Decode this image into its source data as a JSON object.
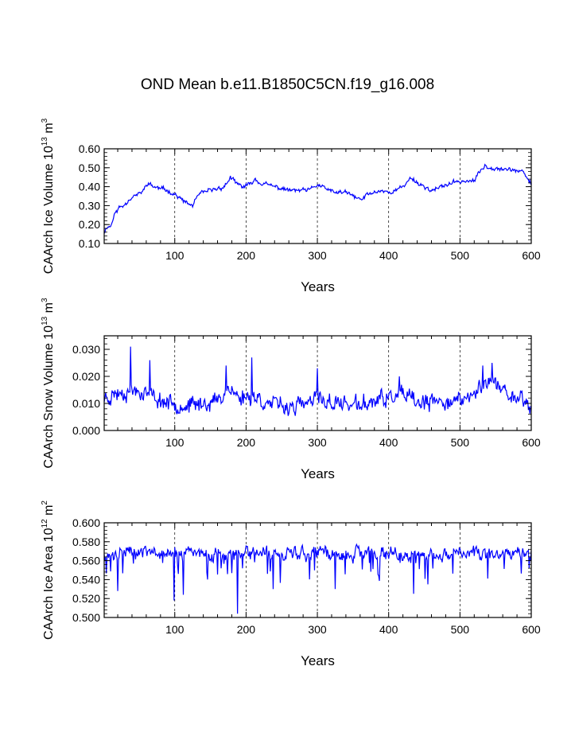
{
  "title": "OND Mean b.e11.B1850C5CN.f19_g16.008",
  "chart_data": [
    {
      "type": "line",
      "name": "ice-volume",
      "ylabel": "CAArch Ice Volume",
      "ylabel_power": "13",
      "ylabel_unit": "m",
      "ylabel_unit_power": "3",
      "xlabel": "Years",
      "xlim": [
        1,
        600
      ],
      "ylim": [
        0.1,
        0.6
      ],
      "xticks": [
        100,
        200,
        300,
        400,
        500,
        600
      ],
      "yticks": [
        "0.10",
        "0.20",
        "0.30",
        "0.40",
        "0.50",
        "0.60"
      ],
      "series_color": "#0000ff",
      "anchors": [
        [
          1,
          0.16
        ],
        [
          5,
          0.19
        ],
        [
          10,
          0.19
        ],
        [
          15,
          0.25
        ],
        [
          22,
          0.29
        ],
        [
          28,
          0.3
        ],
        [
          35,
          0.33
        ],
        [
          42,
          0.35
        ],
        [
          50,
          0.36
        ],
        [
          56,
          0.38
        ],
        [
          62,
          0.42
        ],
        [
          70,
          0.4
        ],
        [
          80,
          0.39
        ],
        [
          90,
          0.38
        ],
        [
          100,
          0.36
        ],
        [
          110,
          0.33
        ],
        [
          118,
          0.31
        ],
        [
          125,
          0.3
        ],
        [
          132,
          0.35
        ],
        [
          140,
          0.37
        ],
        [
          150,
          0.38
        ],
        [
          160,
          0.39
        ],
        [
          170,
          0.4
        ],
        [
          178,
          0.45
        ],
        [
          185,
          0.42
        ],
        [
          195,
          0.4
        ],
        [
          205,
          0.41
        ],
        [
          212,
          0.44
        ],
        [
          220,
          0.42
        ],
        [
          230,
          0.41
        ],
        [
          240,
          0.4
        ],
        [
          250,
          0.39
        ],
        [
          262,
          0.38
        ],
        [
          275,
          0.38
        ],
        [
          288,
          0.38
        ],
        [
          300,
          0.41
        ],
        [
          312,
          0.39
        ],
        [
          322,
          0.37
        ],
        [
          330,
          0.37
        ],
        [
          340,
          0.37
        ],
        [
          350,
          0.35
        ],
        [
          362,
          0.33
        ],
        [
          370,
          0.36
        ],
        [
          380,
          0.37
        ],
        [
          390,
          0.38
        ],
        [
          400,
          0.37
        ],
        [
          410,
          0.38
        ],
        [
          420,
          0.4
        ],
        [
          432,
          0.45
        ],
        [
          440,
          0.42
        ],
        [
          450,
          0.4
        ],
        [
          460,
          0.38
        ],
        [
          470,
          0.39
        ],
        [
          480,
          0.41
        ],
        [
          490,
          0.42
        ],
        [
          500,
          0.43
        ],
        [
          510,
          0.43
        ],
        [
          520,
          0.43
        ],
        [
          528,
          0.48
        ],
        [
          535,
          0.51
        ],
        [
          545,
          0.5
        ],
        [
          555,
          0.5
        ],
        [
          565,
          0.49
        ],
        [
          575,
          0.49
        ],
        [
          585,
          0.48
        ],
        [
          592,
          0.46
        ],
        [
          600,
          0.41
        ]
      ],
      "noise": 0.012,
      "seed": 11
    },
    {
      "type": "line",
      "name": "snow-volume",
      "ylabel": "CAArch Snow Volume",
      "ylabel_power": "13",
      "ylabel_unit": "m",
      "ylabel_unit_power": "3",
      "xlabel": "Years",
      "xlim": [
        1,
        600
      ],
      "ylim": [
        0.0,
        0.035
      ],
      "xticks": [
        100,
        200,
        300,
        400,
        500,
        600
      ],
      "yticks": [
        "0.000",
        "0.010",
        "0.020",
        "0.030"
      ],
      "series_color": "#0000ff",
      "anchors": [
        [
          1,
          0.012
        ],
        [
          20,
          0.014
        ],
        [
          40,
          0.015
        ],
        [
          60,
          0.014
        ],
        [
          80,
          0.011
        ],
        [
          100,
          0.01
        ],
        [
          120,
          0.009
        ],
        [
          140,
          0.01
        ],
        [
          160,
          0.011
        ],
        [
          175,
          0.016
        ],
        [
          190,
          0.012
        ],
        [
          210,
          0.013
        ],
        [
          230,
          0.01
        ],
        [
          250,
          0.009
        ],
        [
          270,
          0.009
        ],
        [
          290,
          0.01
        ],
        [
          300,
          0.012
        ],
        [
          320,
          0.01
        ],
        [
          340,
          0.01
        ],
        [
          360,
          0.009
        ],
        [
          380,
          0.011
        ],
        [
          400,
          0.012
        ],
        [
          420,
          0.013
        ],
        [
          440,
          0.01
        ],
        [
          460,
          0.01
        ],
        [
          480,
          0.011
        ],
        [
          500,
          0.011
        ],
        [
          520,
          0.013
        ],
        [
          535,
          0.019
        ],
        [
          550,
          0.017
        ],
        [
          570,
          0.013
        ],
        [
          590,
          0.012
        ],
        [
          600,
          0.007
        ]
      ],
      "noise": 0.0032,
      "spikes": [
        [
          38,
          0.031
        ],
        [
          65,
          0.026
        ],
        [
          172,
          0.024
        ],
        [
          208,
          0.027
        ],
        [
          300,
          0.023
        ],
        [
          415,
          0.02
        ],
        [
          532,
          0.024
        ],
        [
          545,
          0.025
        ]
      ],
      "seed": 23
    },
    {
      "type": "line",
      "name": "ice-area",
      "ylabel": "CAArch Ice Area",
      "ylabel_power": "12",
      "ylabel_unit": "m",
      "ylabel_unit_power": "2",
      "xlabel": "Years",
      "xlim": [
        1,
        600
      ],
      "ylim": [
        0.5,
        0.6
      ],
      "xticks": [
        100,
        200,
        300,
        400,
        500,
        600
      ],
      "yticks": [
        "0.500",
        "0.520",
        "0.540",
        "0.560",
        "0.580",
        "0.600"
      ],
      "series_color": "#0000ff",
      "anchors": [
        [
          1,
          0.568
        ],
        [
          600,
          0.568
        ]
      ],
      "noise": 0.007,
      "cap": 0.581,
      "spikes": [
        [
          20,
          0.528
        ],
        [
          99,
          0.518
        ],
        [
          112,
          0.524
        ],
        [
          188,
          0.504
        ],
        [
          238,
          0.53
        ],
        [
          325,
          0.53
        ],
        [
          435,
          0.525
        ],
        [
          455,
          0.535
        ]
      ],
      "dips": 0.12,
      "seed": 37
    }
  ]
}
